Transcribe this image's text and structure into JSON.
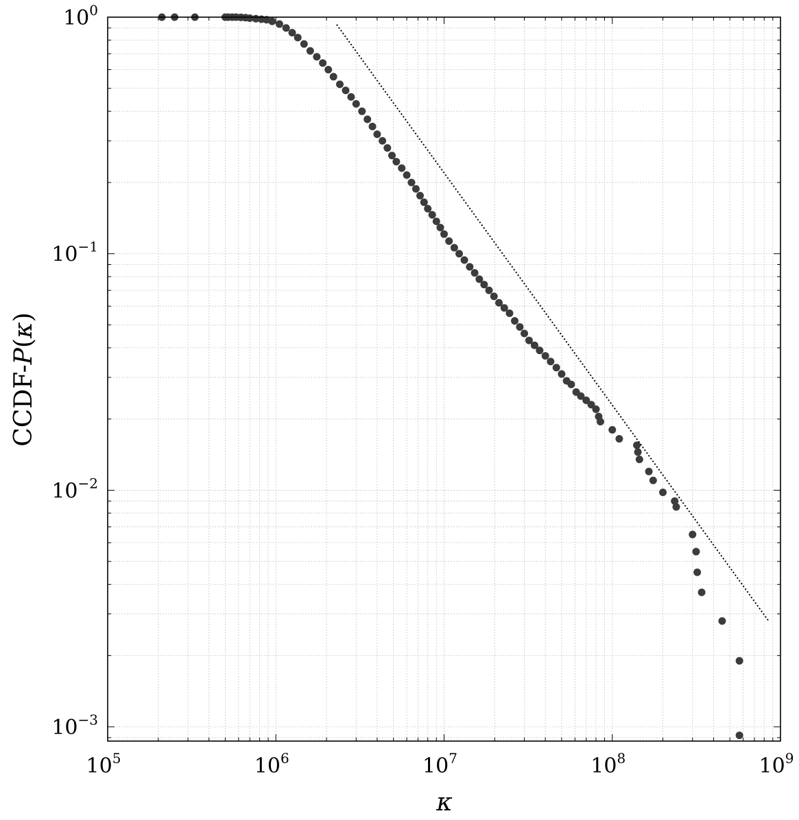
{
  "chart_data": {
    "type": "scatter",
    "title": "",
    "xlabel": "κ",
    "ylabel": {
      "prefix": "CCDF-",
      "symbol": "P",
      "open": "(",
      "arg": "κ",
      "close": ")"
    },
    "x_scale": "log",
    "y_scale": "log",
    "xlim": [
      100000,
      1000000000
    ],
    "ylim": [
      0.00087,
      1.0
    ],
    "x_ticks": [
      {
        "value": 100000,
        "base": "10",
        "exp": "5"
      },
      {
        "value": 1000000,
        "base": "10",
        "exp": "6"
      },
      {
        "value": 10000000,
        "base": "10",
        "exp": "7"
      },
      {
        "value": 100000000,
        "base": "10",
        "exp": "8"
      },
      {
        "value": 1000000000,
        "base": "10",
        "exp": "9"
      }
    ],
    "y_ticks": [
      {
        "value": 1.0,
        "base": "10",
        "exp": "0"
      },
      {
        "value": 0.1,
        "base": "10",
        "exp": "−1"
      },
      {
        "value": 0.01,
        "base": "10",
        "exp": "−2"
      },
      {
        "value": 0.001,
        "base": "10",
        "exp": "−3"
      }
    ],
    "grid": true,
    "marker_color": "#3c3c3c",
    "series": [
      {
        "style": "markers",
        "x": [
          210000,
          250000,
          330000,
          500000,
          520000,
          550000,
          580000,
          620000,
          660000,
          700000,
          760000,
          820000,
          880000,
          950000,
          1050000,
          1150000,
          1250000,
          1350000,
          1470000,
          1600000,
          1750000,
          1900000,
          2050000,
          2200000,
          2400000,
          2600000,
          2800000,
          3000000,
          3250000,
          3500000,
          3750000,
          4000000,
          4300000,
          4600000,
          4900000,
          5200000,
          5600000,
          6000000,
          6400000,
          6800000,
          7200000,
          7600000,
          8000000,
          8500000,
          9000000,
          9500000,
          10000000,
          10700000,
          11500000,
          12300000,
          13200000,
          14200000,
          15200000,
          16200000,
          17300000,
          18500000,
          19800000,
          21200000,
          22800000,
          24500000,
          26300000,
          28200000,
          30000000,
          32000000,
          34500000,
          37000000,
          40000000,
          43000000,
          46500000,
          50000000,
          53500000,
          57000000,
          61000000,
          65000000,
          70000000,
          75000000,
          80000000,
          83000000,
          85000000,
          100000000,
          110000000,
          140000000,
          142000000,
          145000000,
          165000000,
          175000000,
          200000000,
          235000000,
          240000000,
          300000000,
          315000000,
          320000000,
          340000000,
          450000000,
          570000000,
          570000000
        ],
        "y": [
          1.0,
          1.0,
          1.0,
          1.0,
          1.0,
          1.0,
          1.0,
          0.998,
          0.995,
          0.99,
          0.985,
          0.98,
          0.975,
          0.96,
          0.935,
          0.9,
          0.86,
          0.82,
          0.77,
          0.72,
          0.68,
          0.64,
          0.6,
          0.56,
          0.52,
          0.49,
          0.46,
          0.43,
          0.4,
          0.37,
          0.345,
          0.32,
          0.3,
          0.28,
          0.26,
          0.245,
          0.23,
          0.215,
          0.2,
          0.188,
          0.176,
          0.165,
          0.155,
          0.146,
          0.137,
          0.129,
          0.121,
          0.113,
          0.106,
          0.1,
          0.094,
          0.088,
          0.083,
          0.078,
          0.074,
          0.07,
          0.066,
          0.062,
          0.059,
          0.056,
          0.052,
          0.049,
          0.046,
          0.043,
          0.041,
          0.039,
          0.037,
          0.035,
          0.033,
          0.031,
          0.029,
          0.028,
          0.026,
          0.025,
          0.024,
          0.023,
          0.022,
          0.0205,
          0.0195,
          0.018,
          0.0165,
          0.0155,
          0.0145,
          0.0135,
          0.012,
          0.011,
          0.0098,
          0.009,
          0.0085,
          0.0065,
          0.0055,
          0.0045,
          0.0037,
          0.0028,
          0.0019,
          0.00092
        ]
      },
      {
        "style": "dotted-line",
        "x": [
          2300000,
          850000000
        ],
        "y": [
          0.93,
          0.0028
        ]
      }
    ]
  }
}
